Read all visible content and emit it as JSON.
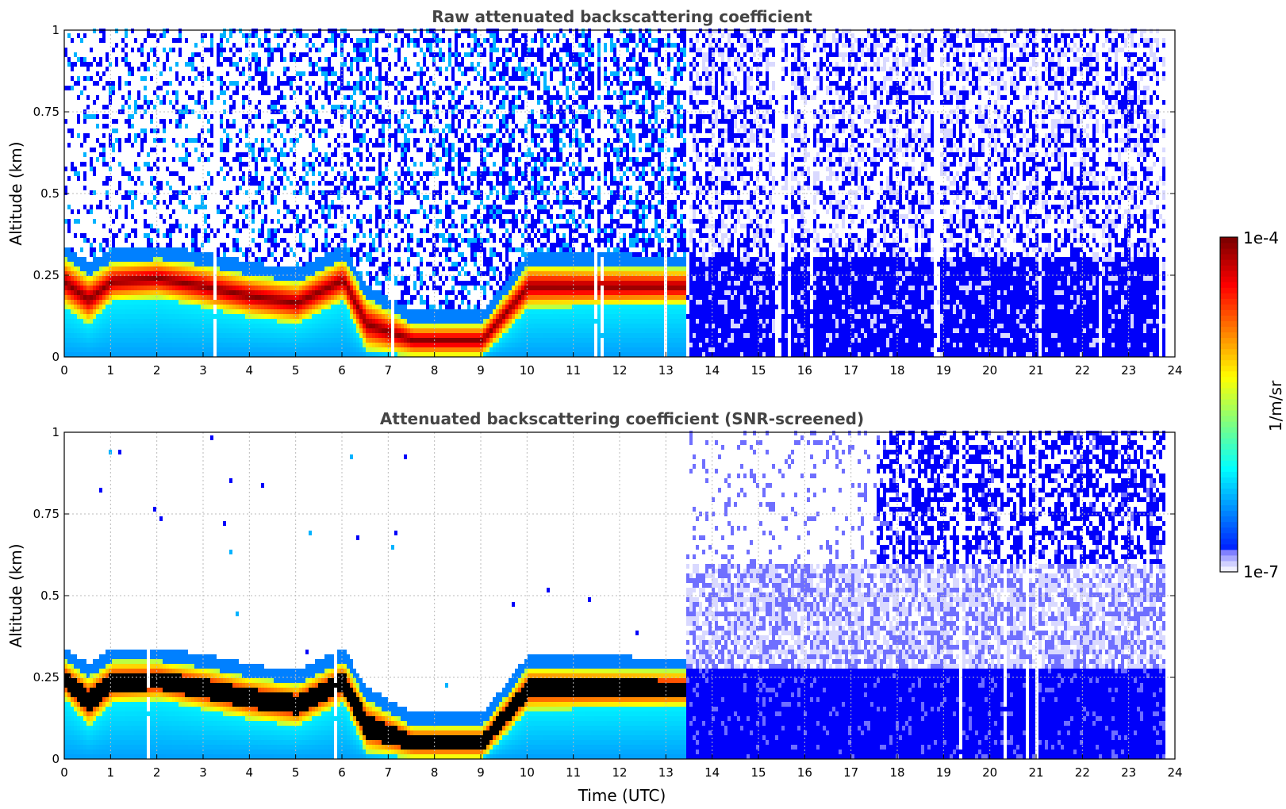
{
  "chart_data": [
    {
      "type": "heatmap",
      "title": "Raw attenuated backscattering coefficient",
      "xlabel": "",
      "ylabel": "Altitude (km)",
      "xlim": [
        0,
        24
      ],
      "ylim": [
        0,
        1
      ],
      "xticks": [
        "0",
        "1",
        "2",
        "3",
        "4",
        "5",
        "6",
        "7",
        "8",
        "9",
        "10",
        "11",
        "12",
        "13",
        "14",
        "15",
        "16",
        "17",
        "18",
        "19",
        "20",
        "21",
        "22",
        "23",
        "24"
      ],
      "yticks": [
        "0",
        "0.25",
        "0.5",
        "0.75",
        "1"
      ],
      "grid": true,
      "colorscale": "jet",
      "layer_profile": [
        {
          "time": 0.0,
          "bottom": 0.15,
          "top": 0.3
        },
        {
          "time": 0.5,
          "bottom": 0.1,
          "top": 0.25
        },
        {
          "time": 1.0,
          "bottom": 0.17,
          "top": 0.29
        },
        {
          "time": 2.0,
          "bottom": 0.18,
          "top": 0.3
        },
        {
          "time": 3.0,
          "bottom": 0.15,
          "top": 0.28
        },
        {
          "time": 4.0,
          "bottom": 0.12,
          "top": 0.25
        },
        {
          "time": 5.0,
          "bottom": 0.1,
          "top": 0.23
        },
        {
          "time": 6.0,
          "bottom": 0.17,
          "top": 0.3
        },
        {
          "time": 6.5,
          "bottom": 0.02,
          "top": 0.18
        },
        {
          "time": 7.5,
          "bottom": 0.0,
          "top": 0.1
        },
        {
          "time": 9.0,
          "bottom": 0.0,
          "top": 0.1
        },
        {
          "time": 10.0,
          "bottom": 0.15,
          "top": 0.28
        },
        {
          "time": 13.2,
          "bottom": 0.16,
          "top": 0.27
        }
      ]
    },
    {
      "type": "heatmap",
      "title": "Attenuated backscattering coefficient (SNR-screened)",
      "xlabel": "Time (UTC)",
      "ylabel": "Altitude (km)",
      "xlim": [
        0,
        24
      ],
      "ylim": [
        0,
        1
      ],
      "xticks": [
        "0",
        "1",
        "2",
        "3",
        "4",
        "5",
        "6",
        "7",
        "8",
        "9",
        "10",
        "11",
        "12",
        "13",
        "14",
        "15",
        "16",
        "17",
        "18",
        "19",
        "20",
        "21",
        "22",
        "23",
        "24"
      ],
      "yticks": [
        "0",
        "0.25",
        "0.5",
        "0.75",
        "1"
      ],
      "grid": true,
      "colorscale": "jet",
      "layer_profile": [
        {
          "time": 0.0,
          "bottom": 0.18,
          "top": 0.3
        },
        {
          "time": 0.5,
          "bottom": 0.1,
          "top": 0.25
        },
        {
          "time": 1.0,
          "bottom": 0.17,
          "top": 0.3
        },
        {
          "time": 2.0,
          "bottom": 0.18,
          "top": 0.3
        },
        {
          "time": 3.0,
          "bottom": 0.15,
          "top": 0.28
        },
        {
          "time": 4.0,
          "bottom": 0.12,
          "top": 0.25
        },
        {
          "time": 5.0,
          "bottom": 0.1,
          "top": 0.23
        },
        {
          "time": 6.0,
          "bottom": 0.17,
          "top": 0.3
        },
        {
          "time": 6.5,
          "bottom": 0.02,
          "top": 0.18
        },
        {
          "time": 7.5,
          "bottom": 0.0,
          "top": 0.1
        },
        {
          "time": 9.0,
          "bottom": 0.0,
          "top": 0.1
        },
        {
          "time": 10.0,
          "bottom": 0.15,
          "top": 0.28
        },
        {
          "time": 13.2,
          "bottom": 0.16,
          "top": 0.27
        }
      ]
    }
  ],
  "colorbar": {
    "label": "1/m/sr",
    "max_label": "1e-4",
    "min_label": "1e-7",
    "scale": "log",
    "range": [
      1e-07,
      0.0001
    ]
  }
}
